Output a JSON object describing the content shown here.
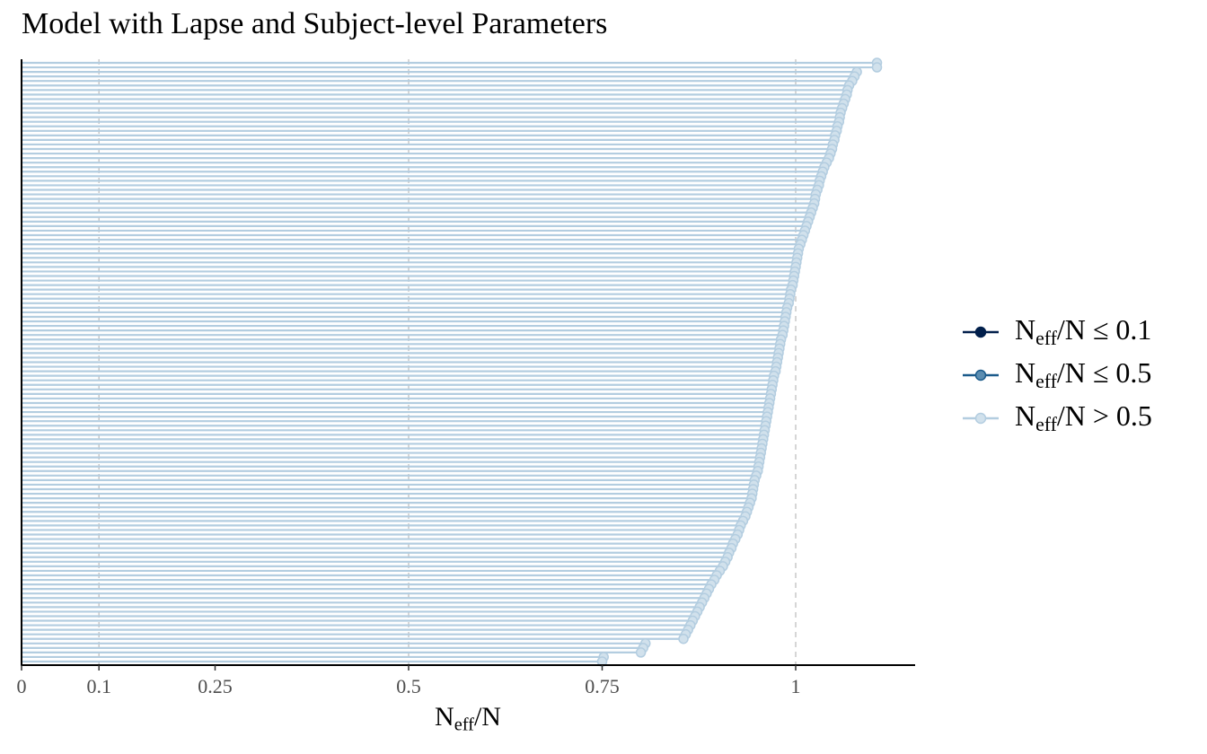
{
  "chart_data": {
    "type": "bar",
    "title": "Model with Lapse and Subject-level Parameters",
    "xlim": [
      0,
      1.1
    ],
    "x_ticks": [
      0,
      0.1,
      0.25,
      0.5,
      0.75,
      1
    ],
    "x_tick_labels": [
      "0",
      "0.1",
      "0.25",
      "0.5",
      "0.75",
      "1"
    ],
    "reference_lines": [
      0.1,
      0.5,
      1
    ],
    "grid": "vertical dashed lines at 0.1, 0.5, 1",
    "legend_position": "right",
    "xlabel": {
      "main": "N",
      "sub": "eff",
      "rest": "/N"
    },
    "legend": [
      {
        "key": "le01",
        "main": "N",
        "sub": "eff",
        "rest": "/N ≤ 0.1",
        "color": "#011F4B",
        "fill": "#011F4B"
      },
      {
        "key": "le05",
        "main": "N",
        "sub": "eff",
        "rest": "/N ≤ 0.5",
        "color": "#1A5A8A",
        "fill": "#5B8DB1"
      },
      {
        "key": "gt05",
        "main": "N",
        "sub": "eff",
        "rest": "/N > 0.5",
        "color": "#B3CDE0",
        "fill": "#D1E1EC"
      }
    ],
    "series": [
      {
        "name": "N_eff/N > 0.5",
        "values": [
          1.105,
          1.105,
          1.079,
          1.076,
          1.073,
          1.069,
          1.067,
          1.066,
          1.064,
          1.062,
          1.06,
          1.058,
          1.057,
          1.056,
          1.054,
          1.053,
          1.051,
          1.05,
          1.048,
          1.047,
          1.045,
          1.043,
          1.04,
          1.037,
          1.035,
          1.033,
          1.031,
          1.03,
          1.028,
          1.026,
          1.025,
          1.024,
          1.022,
          1.02,
          1.018,
          1.016,
          1.014,
          1.012,
          1.01,
          1.008,
          1.006,
          1.004,
          1.003,
          1.002,
          1.001,
          1.0,
          0.999,
          0.998,
          0.997,
          0.996,
          0.994,
          0.993,
          0.992,
          0.991,
          0.989,
          0.988,
          0.987,
          0.986,
          0.985,
          0.984,
          0.983,
          0.981,
          0.98,
          0.979,
          0.978,
          0.977,
          0.976,
          0.975,
          0.974,
          0.972,
          0.971,
          0.97,
          0.969,
          0.968,
          0.967,
          0.966,
          0.965,
          0.964,
          0.963,
          0.962,
          0.961,
          0.96,
          0.959,
          0.958,
          0.957,
          0.956,
          0.955,
          0.954,
          0.953,
          0.952,
          0.951,
          0.949,
          0.947,
          0.946,
          0.945,
          0.944,
          0.943,
          0.941,
          0.939,
          0.937,
          0.935,
          0.932,
          0.929,
          0.927,
          0.925,
          0.922,
          0.919,
          0.917,
          0.914,
          0.912,
          0.909,
          0.906,
          0.902,
          0.898,
          0.895,
          0.891,
          0.888,
          0.885,
          0.882,
          0.879,
          0.876,
          0.873,
          0.87,
          0.867,
          0.864,
          0.861,
          0.858,
          0.855,
          0.806,
          0.803,
          0.8,
          0.752,
          0.75
        ]
      }
    ]
  }
}
